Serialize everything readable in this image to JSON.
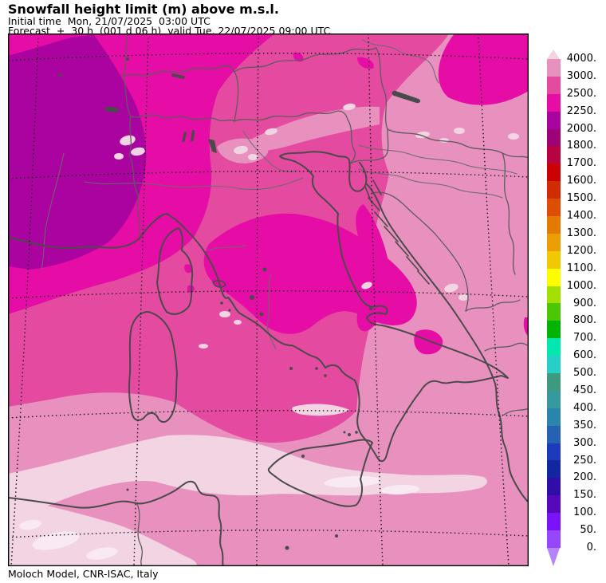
{
  "header": {
    "title": "Snowfall height limit (m) above m.s.l.",
    "initial_time_line": "Initial time  Mon, 21/07/2025  03:00 UTC",
    "forecast_line": "Forecast  +  30 h  (001 d 06 h)  valid Tue, 22/07/2025 09:00 UTC"
  },
  "footer": {
    "credit": "Moloch Model, CNR-ISAC, Italy"
  },
  "colorbar": {
    "unit": "m",
    "labels": [
      "4000.",
      "3000.",
      "2500.",
      "2250.",
      "2000.",
      "1800.",
      "1700.",
      "1600.",
      "1500.",
      "1400.",
      "1300.",
      "1200.",
      "1100.",
      "1000.",
      "900.",
      "800.",
      "700.",
      "600.",
      "500.",
      "450.",
      "400.",
      "350.",
      "300.",
      "250.",
      "200.",
      "150.",
      "100.",
      "50.",
      "0."
    ],
    "colors": [
      "#f2d4e2",
      "#e891bf",
      "#e44a9f",
      "#e60ca6",
      "#ab03a0",
      "#9e0277",
      "#b80343",
      "#cb0001",
      "#d02c02",
      "#dd4e03",
      "#e37a01",
      "#eb9f03",
      "#f2c803",
      "#fdfd00",
      "#a2e003",
      "#4ac803",
      "#02b402",
      "#03e8ae",
      "#26d0c8",
      "#3d9a7e",
      "#35999f",
      "#2a85ac",
      "#2562b1",
      "#1d3abc",
      "#1226a0",
      "#2e0ea6",
      "#5608ba",
      "#7a12fa",
      "#9646fb",
      "#b584f8"
    ]
  },
  "map": {
    "region": "Italy and central Mediterranean",
    "palette": {
      "snow_2000_2250": "#ab03a0",
      "snow_2250_2500": "#e60ca6",
      "snow_2500_3000": "#e44a9f",
      "snow_3000_4000": "#e891bf",
      "snow_above_4000": "#f2d4e2",
      "snow_highest": "#f9e9f2",
      "coastline": "#4a4a4a",
      "border": "#5c5c5c",
      "river": "#6a6a6a",
      "lake": "#4a4a4a",
      "graticule": "#1a1a1a",
      "frame": "#000000"
    }
  }
}
